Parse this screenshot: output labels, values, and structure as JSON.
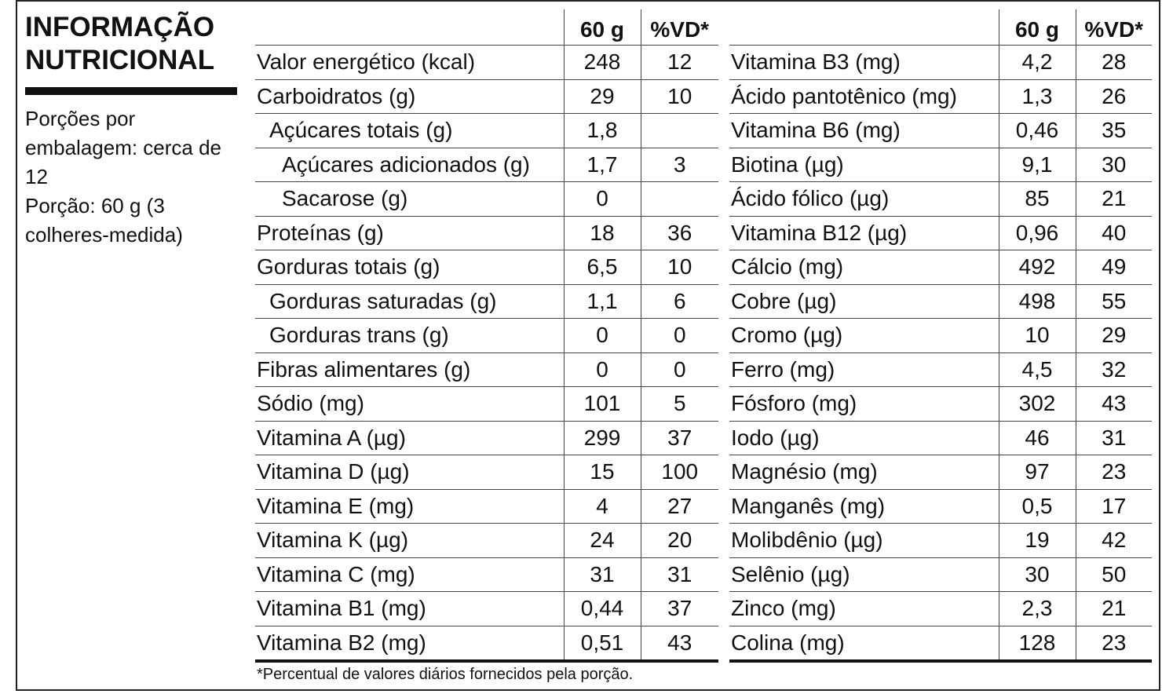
{
  "title_line1": "INFORMAÇÃO",
  "title_line2": "NUTRICIONAL",
  "servings_per_package": "Porções por embalagem: cerca de 12",
  "serving_size": "Porção: 60 g (3 colheres-medida)",
  "headers": {
    "amount": "60 g",
    "dv": "%VD*"
  },
  "left_rows": [
    {
      "name": "Valor energético (kcal)",
      "amount": "248",
      "dv": "12",
      "indent": 0
    },
    {
      "name": "Carboidratos (g)",
      "amount": "29",
      "dv": "10",
      "indent": 0
    },
    {
      "name": "Açúcares totais (g)",
      "amount": "1,8",
      "dv": "",
      "indent": 1
    },
    {
      "name": "Açúcares adicionados (g)",
      "amount": "1,7",
      "dv": "3",
      "indent": 2
    },
    {
      "name": "Sacarose (g)",
      "amount": "0",
      "dv": "",
      "indent": 2
    },
    {
      "name": "Proteínas (g)",
      "amount": "18",
      "dv": "36",
      "indent": 0
    },
    {
      "name": "Gorduras totais (g)",
      "amount": "6,5",
      "dv": "10",
      "indent": 0
    },
    {
      "name": "Gorduras saturadas (g)",
      "amount": "1,1",
      "dv": "6",
      "indent": 1
    },
    {
      "name": "Gorduras trans (g)",
      "amount": "0",
      "dv": "0",
      "indent": 1
    },
    {
      "name": "Fibras alimentares (g)",
      "amount": "0",
      "dv": "0",
      "indent": 0
    },
    {
      "name": "Sódio (mg)",
      "amount": "101",
      "dv": "5",
      "indent": 0
    },
    {
      "name": "Vitamina A (µg)",
      "amount": "299",
      "dv": "37",
      "indent": 0
    },
    {
      "name": "Vitamina D (µg)",
      "amount": "15",
      "dv": "100",
      "indent": 0
    },
    {
      "name": "Vitamina E (mg)",
      "amount": "4",
      "dv": "27",
      "indent": 0
    },
    {
      "name": "Vitamina K (µg)",
      "amount": "24",
      "dv": "20",
      "indent": 0
    },
    {
      "name": "Vitamina C (mg)",
      "amount": "31",
      "dv": "31",
      "indent": 0
    },
    {
      "name": "Vitamina B1 (mg)",
      "amount": "0,44",
      "dv": "37",
      "indent": 0
    },
    {
      "name": "Vitamina B2 (mg)",
      "amount": "0,51",
      "dv": "43",
      "indent": 0
    }
  ],
  "right_rows": [
    {
      "name": "Vitamina B3 (mg)",
      "amount": "4,2",
      "dv": "28"
    },
    {
      "name": "Ácido pantotênico (mg)",
      "amount": "1,3",
      "dv": "26"
    },
    {
      "name": "Vitamina B6 (mg)",
      "amount": "0,46",
      "dv": "35"
    },
    {
      "name": "Biotina (µg)",
      "amount": "9,1",
      "dv": "30"
    },
    {
      "name": "Ácido fólico (µg)",
      "amount": "85",
      "dv": "21"
    },
    {
      "name": "Vitamina B12 (µg)",
      "amount": "0,96",
      "dv": "40"
    },
    {
      "name": "Cálcio (mg)",
      "amount": "492",
      "dv": "49"
    },
    {
      "name": "Cobre (µg)",
      "amount": "498",
      "dv": "55"
    },
    {
      "name": "Cromo (µg)",
      "amount": "10",
      "dv": "29"
    },
    {
      "name": "Ferro (mg)",
      "amount": "4,5",
      "dv": "32"
    },
    {
      "name": "Fósforo (mg)",
      "amount": "302",
      "dv": "43"
    },
    {
      "name": "Iodo (µg)",
      "amount": "46",
      "dv": "31"
    },
    {
      "name": "Magnésio (mg)",
      "amount": "97",
      "dv": "23"
    },
    {
      "name": "Manganês (mg)",
      "amount": "0,5",
      "dv": "17"
    },
    {
      "name": "Molibdênio (µg)",
      "amount": "19",
      "dv": "42"
    },
    {
      "name": "Selênio (µg)",
      "amount": "30",
      "dv": "50"
    },
    {
      "name": "Zinco (mg)",
      "amount": "2,3",
      "dv": "21"
    },
    {
      "name": "Colina (mg)",
      "amount": "128",
      "dv": "23"
    }
  ],
  "footnote": "*Percentual de valores diários fornecidos pela porção."
}
